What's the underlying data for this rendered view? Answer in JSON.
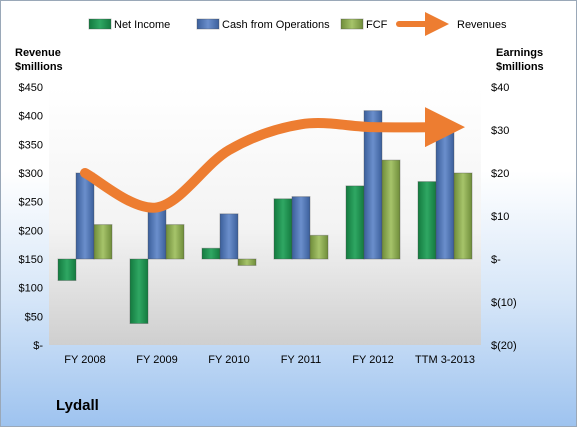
{
  "company": "Lydall",
  "chart_data": {
    "type": "bar",
    "categories": [
      "FY 2008",
      "FY 2009",
      "FY 2010",
      "FY 2011",
      "FY 2012",
      "TTM 3-2013"
    ],
    "left_axis_title": [
      "Revenue",
      "$millions"
    ],
    "right_axis_title": [
      "Earnings",
      "$millions"
    ],
    "left_ticks": [
      "$-",
      "$50",
      "$100",
      "$150",
      "$200",
      "$250",
      "$300",
      "$350",
      "$400",
      "$450"
    ],
    "right_ticks": [
      "$(20)",
      "$(10)",
      "$-",
      "$10",
      "$20",
      "$30",
      "$40"
    ],
    "left_ylim": [
      0,
      450
    ],
    "right_ylim": [
      -20,
      40
    ],
    "legend_position": "top",
    "grid": false,
    "series": [
      {
        "name": "Net Income",
        "axis": "right",
        "kind": "bar",
        "color": "#1e8c50",
        "values": [
          -5,
          -15,
          2.5,
          14,
          17,
          18
        ]
      },
      {
        "name": "Cash from Operations",
        "axis": "right",
        "kind": "bar",
        "color": "#4f76b3",
        "values": [
          20,
          12.5,
          10.5,
          14.5,
          34.5,
          30
        ]
      },
      {
        "name": "FCF",
        "axis": "right",
        "kind": "bar",
        "color": "#88a84f",
        "values": [
          8,
          8,
          -1.5,
          5.5,
          23,
          20
        ]
      },
      {
        "name": "Revenues",
        "axis": "left",
        "kind": "line",
        "color": "#ed7d31",
        "values": [
          300,
          240,
          340,
          385,
          380,
          380
        ]
      }
    ]
  }
}
